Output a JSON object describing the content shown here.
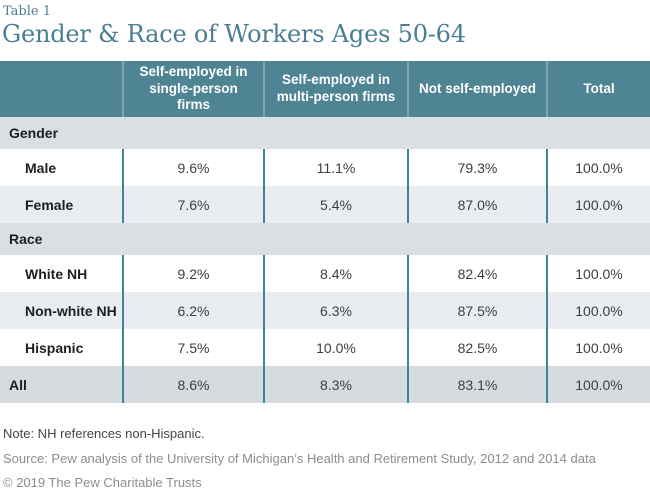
{
  "header": {
    "eyebrow": "Table 1",
    "title": "Gender & Race of Workers Ages 50-64"
  },
  "table": {
    "columns": [
      "Self-employed in single-person firms",
      "Self-employed in multi-person firms",
      "Not self-employed",
      "Total"
    ],
    "sections": [
      {
        "title": "Gender",
        "rows": [
          {
            "label": "Male",
            "values": [
              "9.6%",
              "11.1%",
              "79.3%",
              "100.0%"
            ]
          },
          {
            "label": "Female",
            "values": [
              "7.6%",
              "5.4%",
              "87.0%",
              "100.0%"
            ]
          }
        ]
      },
      {
        "title": "Race",
        "rows": [
          {
            "label": "White NH",
            "values": [
              "9.2%",
              "8.4%",
              "82.4%",
              "100.0%"
            ]
          },
          {
            "label": "Non-white NH",
            "values": [
              "6.2%",
              "6.3%",
              "87.5%",
              "100.0%"
            ]
          },
          {
            "label": "Hispanic",
            "values": [
              "7.5%",
              "10.0%",
              "82.5%",
              "100.0%"
            ]
          }
        ]
      }
    ],
    "total_row": {
      "label": "All",
      "values": [
        "8.6%",
        "8.3%",
        "83.1%",
        "100.0%"
      ]
    }
  },
  "footer": {
    "note": "Note: NH references non-Hispanic.",
    "source": "Source: Pew analysis of the University of Michigan’s Health and Retirement Study, 2012 and 2014 data",
    "copyright": "© 2019 The Pew Charitable Trusts"
  },
  "colors": {
    "header_teal": "#4e8493",
    "header_separator": "#7fa6b1",
    "column_separator": "#3f8494",
    "section_row_bg": "#dadfe3",
    "alt_row_bg": "#e9edf0",
    "total_row_bg": "#d5dbdf",
    "title_teal": "#4a7e94"
  },
  "chart_data": {
    "type": "table",
    "title": "Gender & Race of Workers Ages 50-64",
    "subtitle": "Table 1",
    "columns": [
      "",
      "Self-employed in single-person firms",
      "Self-employed in multi-person firms",
      "Not self-employed",
      "Total"
    ],
    "rows": [
      [
        "Gender",
        "",
        "",
        "",
        ""
      ],
      [
        "Male",
        "9.6%",
        "11.1%",
        "79.3%",
        "100.0%"
      ],
      [
        "Female",
        "7.6%",
        "5.4%",
        "87.0%",
        "100.0%"
      ],
      [
        "Race",
        "",
        "",
        "",
        ""
      ],
      [
        "White NH",
        "9.2%",
        "8.4%",
        "82.4%",
        "100.0%"
      ],
      [
        "Non-white NH",
        "6.2%",
        "6.3%",
        "87.5%",
        "100.0%"
      ],
      [
        "Hispanic",
        "7.5%",
        "10.0%",
        "82.5%",
        "100.0%"
      ],
      [
        "All",
        "8.6%",
        "8.3%",
        "83.1%",
        "100.0%"
      ]
    ],
    "notes": [
      "Note: NH references non-Hispanic.",
      "Source: Pew analysis of the University of Michigan’s Health and Retirement Study, 2012 and 2014 data",
      "© 2019 The Pew Charitable Trusts"
    ]
  }
}
